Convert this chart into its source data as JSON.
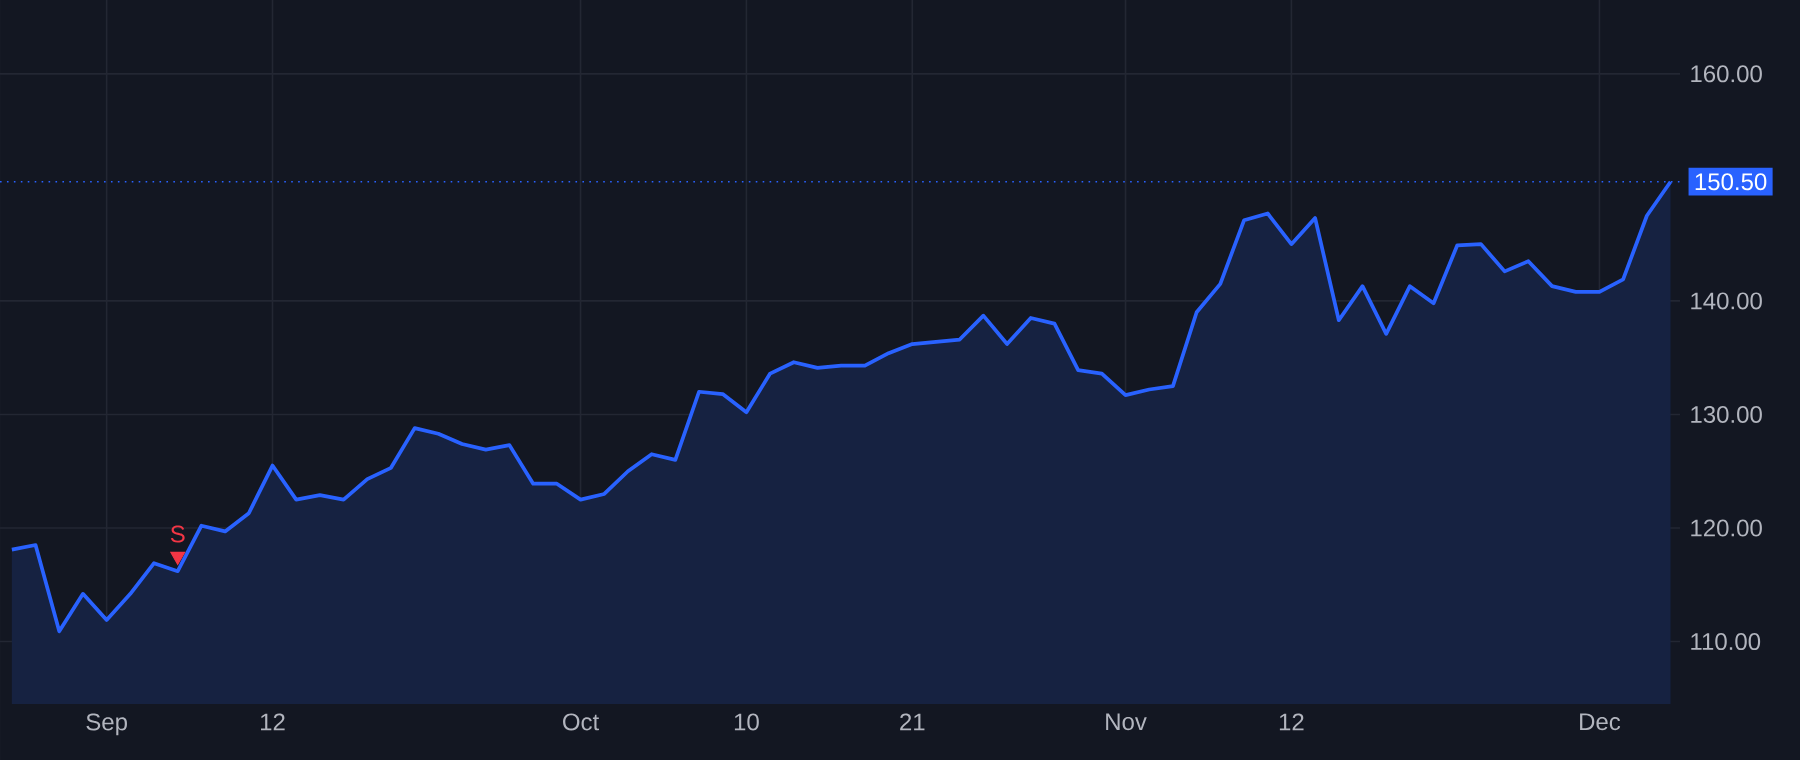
{
  "chart_data": {
    "type": "area",
    "categories": [
      null,
      null,
      null,
      null,
      "Sep",
      null,
      null,
      null,
      null,
      null,
      null,
      "12",
      null,
      null,
      null,
      null,
      null,
      null,
      null,
      null,
      null,
      null,
      null,
      null,
      "Oct",
      null,
      null,
      null,
      null,
      null,
      null,
      "10",
      null,
      null,
      null,
      null,
      null,
      null,
      "21",
      null,
      null,
      null,
      null,
      null,
      null,
      null,
      null,
      "Nov",
      null,
      null,
      null,
      null,
      null,
      null,
      "12",
      null,
      null,
      null,
      null,
      null,
      null,
      null,
      null,
      null,
      null,
      null,
      null,
      "Dec",
      null,
      null,
      null
    ],
    "series": [
      {
        "color": "#2962ff",
        "values": [
          118.1,
          118.5,
          110.9,
          114.2,
          111.9,
          114.2,
          116.9,
          116.2,
          120.2,
          119.7,
          121.3,
          125.5,
          122.5,
          122.9,
          122.5,
          124.3,
          125.3,
          128.8,
          128.3,
          127.4,
          126.9,
          127.3,
          123.9,
          123.9,
          122.5,
          123.0,
          125.0,
          126.5,
          126.0,
          132.0,
          131.8,
          130.2,
          133.6,
          134.6,
          134.1,
          134.3,
          134.3,
          135.4,
          136.2,
          136.4,
          136.6,
          138.7,
          136.2,
          138.5,
          138.0,
          133.9,
          133.6,
          131.7,
          132.2,
          132.5,
          139.0,
          141.5,
          147.1,
          147.7,
          145.0,
          147.3,
          138.3,
          141.3,
          137.1,
          141.3,
          139.8,
          144.9,
          145.0,
          142.6,
          143.5,
          141.3,
          140.8,
          140.8,
          141.9,
          147.5,
          150.5
        ]
      },
      {
        "type": "scatter",
        "name": "S",
        "color": "#f23645",
        "marker": "triangle",
        "values": [
          null,
          null,
          null,
          null,
          null,
          null,
          null,
          117.5,
          null,
          null,
          null,
          null,
          null,
          null,
          null,
          null,
          null,
          null,
          null,
          null,
          null,
          null,
          null,
          null,
          null,
          null,
          null,
          null,
          null,
          null,
          null,
          null,
          null,
          null,
          null,
          null,
          null,
          null,
          null,
          null,
          null,
          null,
          null,
          null,
          null,
          null,
          null,
          null,
          null,
          null,
          null,
          null,
          null,
          null,
          null,
          null,
          null,
          null,
          null,
          null,
          null,
          null,
          null,
          null,
          null,
          null,
          null,
          null,
          null,
          null,
          null
        ]
      }
    ],
    "ylim": [
      104.5,
      166.5
    ],
    "yticks": [
      {
        "value": 110,
        "label": "110.00"
      },
      {
        "value": 120,
        "label": "120.00"
      },
      {
        "value": 130,
        "label": "130.00"
      },
      {
        "value": 140,
        "label": "140.00"
      },
      {
        "value": 160,
        "label": "160.00"
      }
    ],
    "grid": true,
    "ref_lines": [
      {
        "axis": "y",
        "value": 150.5,
        "label": "150.50",
        "color": "#2962ff",
        "line_style": "dotted"
      }
    ]
  }
}
